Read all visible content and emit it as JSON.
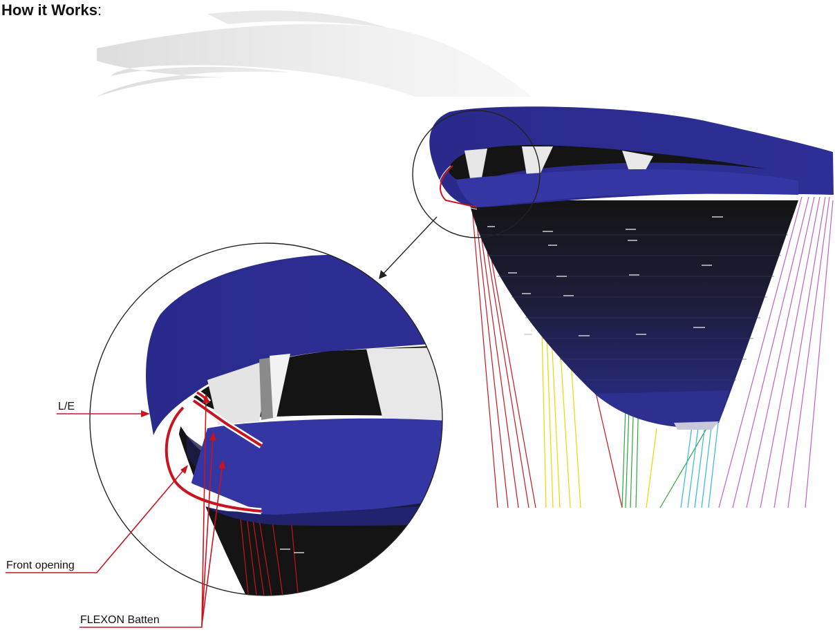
{
  "header": {
    "title": "How it Works",
    "colon": ":"
  },
  "callouts": {
    "le": "L/E",
    "front_opening": "Front opening",
    "flexon_batten": "FLEXON Batten"
  },
  "colors": {
    "canopy": "#2b2d8e",
    "canopy_dark": "#161655",
    "interior": "#141414",
    "rib": "#e6e6e6",
    "batten": "#c8141e",
    "lines_red": "#c8141e",
    "lines_yellow": "#e8d800",
    "lines_green": "#29a83a",
    "lines_cyan": "#33b8d8",
    "lines_magenta": "#c060c0",
    "callout": "#c8141e"
  }
}
